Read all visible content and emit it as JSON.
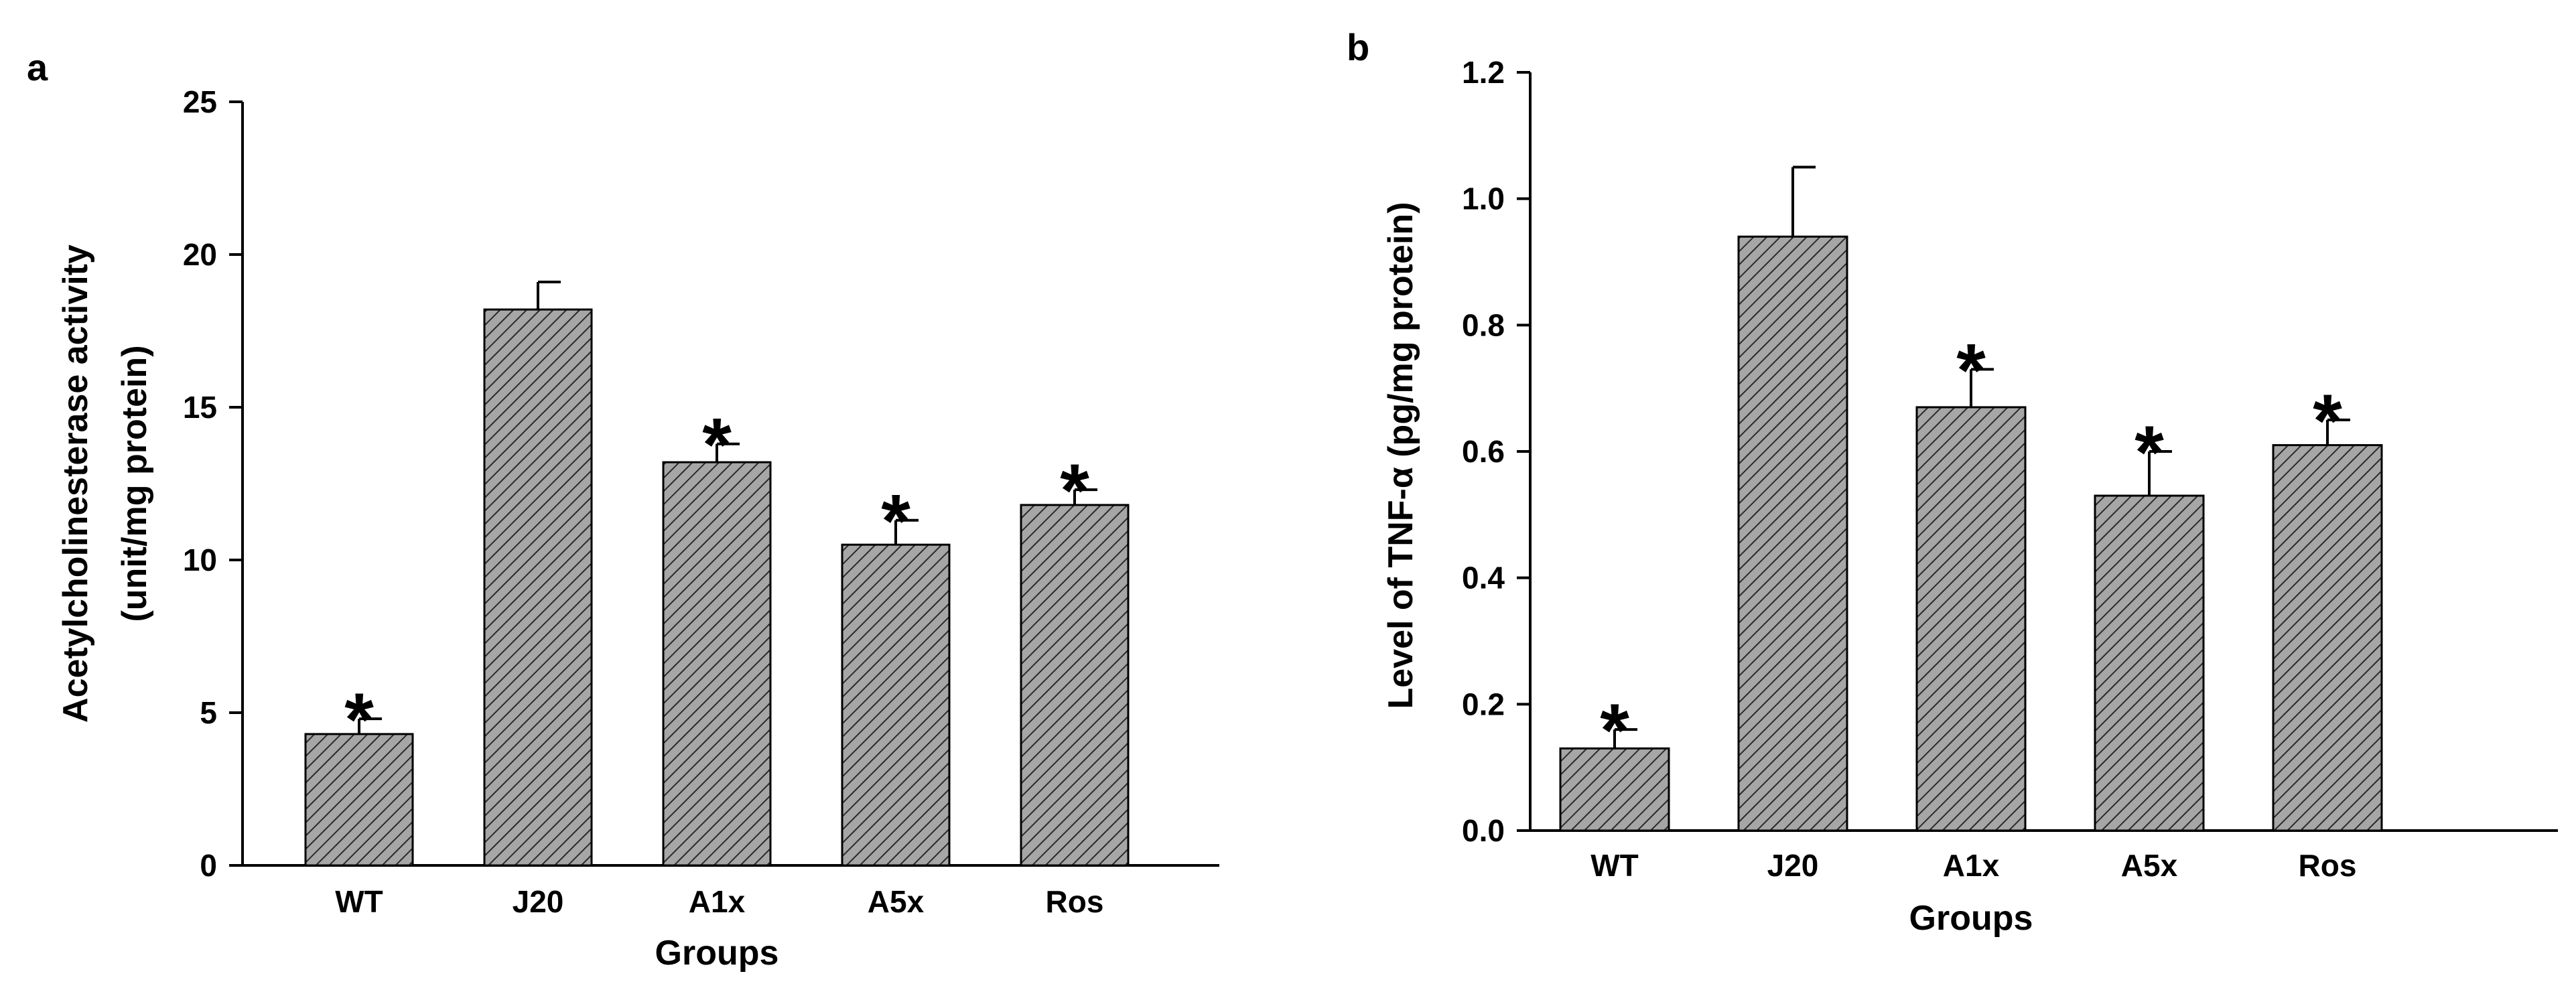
{
  "chart_data": [
    {
      "panel_label": "a",
      "type": "bar",
      "categories": [
        "WT",
        "J20",
        "A1x",
        "A5x",
        "Ros"
      ],
      "values": [
        4.3,
        18.2,
        13.2,
        10.5,
        11.8
      ],
      "errors": [
        0.5,
        0.9,
        0.6,
        0.8,
        0.5
      ],
      "significance": [
        "*",
        "",
        "*",
        "*",
        "*"
      ],
      "xlabel": "Groups",
      "ylabel": [
        "Acetylcholinesterase activity",
        "(unit/mg protein)"
      ],
      "ylim": [
        0,
        25
      ],
      "yticks": [
        "0",
        "5",
        "10",
        "15",
        "20",
        "25"
      ],
      "bar_fill": "#a6a6a6",
      "hatch": "diagonal",
      "grid": false,
      "legend": "none"
    },
    {
      "panel_label": "b",
      "type": "bar",
      "categories": [
        "WT",
        "J20",
        "A1x",
        "A5x",
        "Ros"
      ],
      "values": [
        0.13,
        0.94,
        0.67,
        0.53,
        0.61
      ],
      "errors": [
        0.03,
        0.11,
        0.06,
        0.07,
        0.04
      ],
      "significance": [
        "*",
        "",
        "*",
        "*",
        "*"
      ],
      "xlabel": "Groups",
      "ylabel": [
        "Level of TNF-α (pg/mg protein)"
      ],
      "ylim": [
        0,
        1.2
      ],
      "yticks": [
        "0.0",
        "0.2",
        "0.4",
        "0.6",
        "0.8",
        "1.0",
        "1.2"
      ],
      "bar_fill": "#a6a6a6",
      "hatch": "diagonal",
      "grid": false,
      "legend": "none"
    }
  ]
}
